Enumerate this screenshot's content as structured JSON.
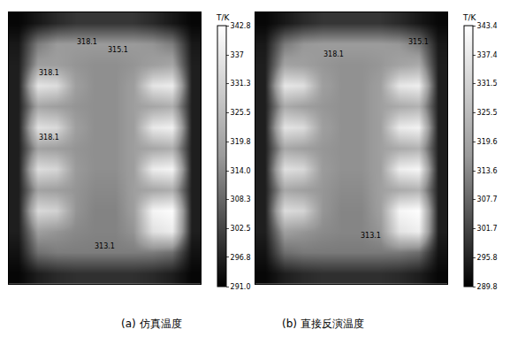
{
  "chart_data": [
    {
      "type": "heatmap",
      "subtitle": "(a) 仿真温度",
      "tick_labels": false,
      "z": [
        [
          292,
          295,
          298,
          300,
          300,
          300,
          300,
          298,
          295,
          292
        ],
        [
          295,
          312,
          317,
          317,
          317,
          317,
          317,
          316,
          312,
          295
        ],
        [
          296,
          318,
          318,
          316,
          315,
          315,
          316,
          318,
          320,
          296
        ],
        [
          296,
          336,
          334,
          318,
          315,
          315,
          318,
          336,
          338,
          296
        ],
        [
          296,
          320,
          318,
          316,
          315,
          315,
          318,
          320,
          322,
          296
        ],
        [
          296,
          335,
          333,
          318,
          315,
          315,
          318,
          337,
          339,
          296
        ],
        [
          296,
          319,
          318,
          316,
          315,
          315,
          318,
          320,
          322,
          296
        ],
        [
          296,
          334,
          332,
          317,
          315,
          315,
          318,
          338,
          340,
          296
        ],
        [
          296,
          319,
          318,
          316,
          314,
          314,
          318,
          320,
          322,
          296
        ],
        [
          296,
          333,
          331,
          316,
          313,
          313,
          318,
          340,
          342,
          296
        ],
        [
          296,
          318,
          316,
          314,
          313,
          313,
          316,
          335,
          338,
          296
        ],
        [
          294,
          310,
          312,
          312,
          312,
          312,
          312,
          312,
          310,
          294
        ],
        [
          292,
          296,
          298,
          299,
          299,
          299,
          299,
          298,
          296,
          292
        ]
      ],
      "colorbar": {
        "title": "T/K",
        "range": [
          291.0,
          342.8
        ],
        "ticks": [
          {
            "value": 291,
            "label": "291.0"
          },
          296.8,
          302.5,
          308.3,
          {
            "value": 314,
            "label": "314.0"
          },
          319.8,
          325.5,
          331.3,
          337.0,
          342.8
        ]
      },
      "annotations": [
        "318.1",
        "315.1",
        "318.1",
        "318.1",
        "313.1"
      ]
    },
    {
      "type": "heatmap",
      "subtitle": "(b) 直接反演温度",
      "tick_labels": false,
      "z": [
        [
          291,
          294,
          297,
          299,
          299,
          299,
          299,
          297,
          294,
          291
        ],
        [
          294,
          311,
          316,
          317,
          317,
          317,
          317,
          316,
          311,
          294
        ],
        [
          295,
          319,
          318,
          316,
          315,
          315,
          316,
          319,
          321,
          295
        ],
        [
          295,
          337,
          335,
          318,
          315,
          315,
          318,
          337,
          339,
          295
        ],
        [
          295,
          321,
          318,
          316,
          315,
          315,
          318,
          321,
          323,
          295
        ],
        [
          295,
          336,
          334,
          318,
          315,
          315,
          318,
          338,
          340,
          295
        ],
        [
          295,
          320,
          318,
          316,
          315,
          315,
          318,
          321,
          323,
          295
        ],
        [
          295,
          335,
          333,
          317,
          315,
          315,
          318,
          339,
          341,
          295
        ],
        [
          295,
          320,
          318,
          316,
          314,
          314,
          318,
          321,
          323,
          295
        ],
        [
          295,
          334,
          332,
          316,
          313,
          313,
          318,
          341,
          343,
          295
        ],
        [
          295,
          318,
          316,
          314,
          313,
          313,
          316,
          336,
          339,
          295
        ],
        [
          293,
          309,
          311,
          311,
          311,
          311,
          311,
          311,
          309,
          293
        ],
        [
          291,
          295,
          297,
          298,
          298,
          298,
          298,
          297,
          295,
          291
        ]
      ],
      "colorbar": {
        "title": "T/K",
        "range": [
          289.8,
          343.4
        ],
        "ticks": [
          289.8,
          295.8,
          301.7,
          307.7,
          313.6,
          319.6,
          325.5,
          331.5,
          337.4,
          343.4
        ]
      },
      "annotations": [
        "315.1",
        "318.1",
        "313.1"
      ]
    }
  ]
}
